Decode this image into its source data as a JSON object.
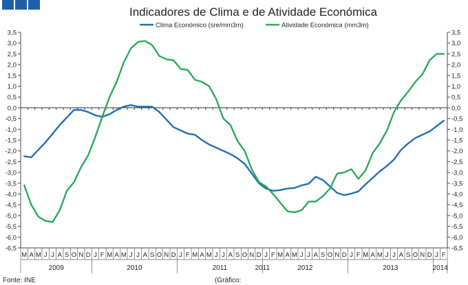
{
  "header": {
    "squares": [
      "brand-square-1",
      "brand-square-2",
      "brand-square-3"
    ],
    "brand_color": "#1f5fa8"
  },
  "footer": {
    "source": "Fonte: INE",
    "chart_note": "(Gráfico:"
  },
  "chart_data": {
    "type": "line",
    "title": "Indicadores de Clima e de Atividade Económica",
    "xlabel": "",
    "ylabel": "",
    "ylim": [
      -6.5,
      3.5
    ],
    "y_ticks": [
      "3,5",
      "3,0",
      "2,5",
      "2,0",
      "1,5",
      "1,0",
      "0,5",
      "0,0",
      "-0,5",
      "-1,0",
      "-1,5",
      "-2,0",
      "-2,5",
      "-3,0",
      "-3,5",
      "-4,0",
      "-4,5",
      "-5,0",
      "-5,5",
      "-6,0",
      "-6,5"
    ],
    "months": [
      "M",
      "A",
      "M",
      "J",
      "J",
      "A",
      "S",
      "O",
      "N",
      "D",
      "J",
      "F",
      "M",
      "A",
      "M",
      "J",
      "J",
      "A",
      "S",
      "O",
      "N",
      "D",
      "J",
      "F",
      "M",
      "A",
      "M",
      "J",
      "J",
      "A",
      "S",
      "O",
      "N",
      "D",
      "J",
      "F",
      "M",
      "A",
      "M",
      "J",
      "J",
      "A",
      "S",
      "O",
      "N",
      "D",
      "J",
      "F",
      "M",
      "A",
      "M",
      "J",
      "J",
      "A",
      "S",
      "O",
      "N",
      "D",
      "J",
      "F"
    ],
    "years": [
      {
        "label": "2009",
        "start": 0,
        "end": 10
      },
      {
        "label": "2010",
        "start": 10,
        "end": 22
      },
      {
        "label": "2011",
        "start": 22,
        "end": 34
      },
      {
        "label": "2011",
        "start": 34,
        "end": 34
      },
      {
        "label": "2012",
        "start": 34,
        "end": 46
      },
      {
        "label": "2013",
        "start": 46,
        "end": 58
      },
      {
        "label": "2014",
        "start": 58,
        "end": 60
      }
    ],
    "series": [
      {
        "name": "Clima Económico (sre/mm3m)",
        "color": "#1f6eb4",
        "values": [
          -2.25,
          -2.3,
          -1.95,
          -1.6,
          -1.2,
          -0.8,
          -0.45,
          -0.1,
          -0.1,
          -0.2,
          -0.35,
          -0.42,
          -0.3,
          -0.1,
          0.05,
          0.12,
          0.05,
          0.05,
          0.05,
          -0.2,
          -0.55,
          -0.9,
          -1.05,
          -1.2,
          -1.25,
          -1.5,
          -1.7,
          -1.85,
          -2.0,
          -2.15,
          -2.35,
          -2.6,
          -3.05,
          -3.5,
          -3.75,
          -3.85,
          -3.82,
          -3.75,
          -3.72,
          -3.6,
          -3.52,
          -3.2,
          -3.35,
          -3.65,
          -3.95,
          -4.05,
          -3.98,
          -3.88,
          -3.55,
          -3.25,
          -2.95,
          -2.7,
          -2.4,
          -1.95,
          -1.65,
          -1.4,
          -1.25,
          -1.1,
          -0.85,
          -0.6
        ]
      },
      {
        "name": "Atividade Económica (mm3m)",
        "color": "#2aa95a",
        "values": [
          -3.6,
          -4.5,
          -5.05,
          -5.25,
          -5.3,
          -4.75,
          -3.85,
          -3.45,
          -2.75,
          -2.2,
          -1.35,
          -0.4,
          0.5,
          1.2,
          2.1,
          2.75,
          3.05,
          3.1,
          2.9,
          2.4,
          2.25,
          2.2,
          1.8,
          1.75,
          1.3,
          1.2,
          1.0,
          0.4,
          -0.5,
          -0.8,
          -1.55,
          -2.0,
          -2.85,
          -3.45,
          -3.65,
          -4.0,
          -4.4,
          -4.8,
          -4.85,
          -4.75,
          -4.35,
          -4.35,
          -4.1,
          -3.75,
          -3.05,
          -3.0,
          -2.85,
          -3.3,
          -2.9,
          -2.1,
          -1.65,
          -1.05,
          -0.2,
          0.35,
          0.75,
          1.2,
          1.55,
          2.2,
          2.5,
          2.5
        ]
      }
    ]
  }
}
